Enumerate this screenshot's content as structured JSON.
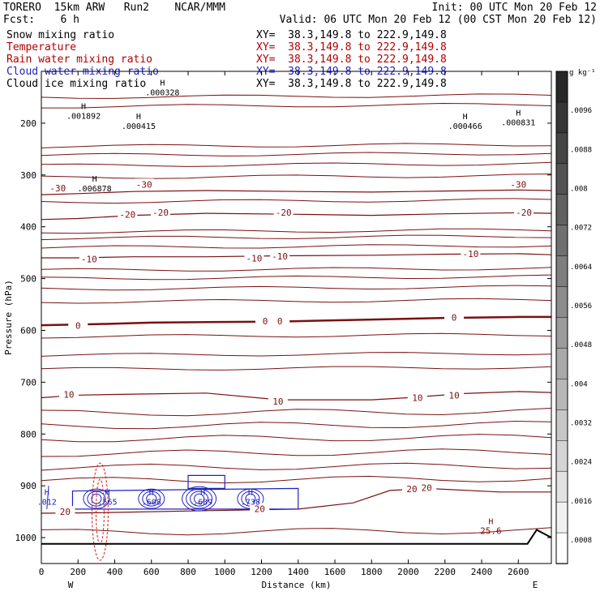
{
  "header": {
    "line1_left": "TORERO  15km ARW   Run2    NCAR/MMM",
    "line1_right": "Init: 00 UTC Mon 20 Feb 12",
    "line2_left": "Fcst:    6 h",
    "line2_right": "Valid: 06 UTC Mon 20 Feb 12 (00 CST Mon 20 Feb 12)"
  },
  "fields": [
    {
      "name": "Snow mixing ratio",
      "xy": "XY=  38.3,149.8 to 222.9,149.8",
      "name_color": "#000000",
      "xy_color": "#000000"
    },
    {
      "name": "Temperature",
      "xy": "XY=  38.3,149.8 to 222.9,149.8",
      "name_color": "#b00000",
      "xy_color": "#b00000"
    },
    {
      "name": "Rain water mixing ratio",
      "xy": "XY=  38.3,149.8 to 222.9,149.8",
      "name_color": "#b00000",
      "xy_color": "#b00000"
    },
    {
      "name": "Cloud water mixing ratio",
      "xy": "XY=  38.3,149.8 to 222.9,149.8",
      "name_color": "#2020c0",
      "xy_color": "#2020c0"
    },
    {
      "name": "Cloud ice mixing ratio",
      "xy": "XY=  38.3,149.8 to 222.9,149.8",
      "name_color": "#000000",
      "xy_color": "#000000"
    }
  ],
  "colors": {
    "temperature": "#7a1010",
    "cloud_water": "#2020c0",
    "rain_water": "#d02020",
    "snow": "#000000",
    "terrain": "#000000"
  },
  "chart_data": {
    "type": "line",
    "xlabel": "Distance (km)",
    "ylabel": "Pressure (hPa)",
    "x_ticks": [
      "0",
      "200",
      "400",
      "600",
      "800",
      "1000",
      "1200",
      "1400",
      "1600",
      "1800",
      "2000",
      "2200",
      "2400",
      "2600"
    ],
    "y_ticks": [
      "200",
      "300",
      "400",
      "500",
      "600",
      "700",
      "800",
      "900",
      "1000"
    ],
    "xlim": [
      0,
      2780
    ],
    "ylim": [
      1050,
      100
    ],
    "y_scale": "linear",
    "x_end_labels": {
      "left": "W",
      "right": "E"
    },
    "colorbar": {
      "unit": "g kg⁻¹",
      "ticks": [
        ".0096",
        ".0088",
        ".008",
        ".0072",
        ".0064",
        ".0056",
        ".0048",
        ".004",
        ".0032",
        ".0024",
        ".0016",
        ".0008"
      ]
    },
    "temperature_contours": [
      {
        "level": -30,
        "points": [
          [
            0,
            338
          ],
          [
            200,
            336
          ],
          [
            500,
            332
          ],
          [
            900,
            330
          ],
          [
            1400,
            332
          ],
          [
            1800,
            333
          ],
          [
            2200,
            331
          ],
          [
            2600,
            329
          ],
          [
            2780,
            330
          ]
        ],
        "labels": [
          {
            "text": "-30",
            "x": 90,
            "p": 325
          },
          {
            "text": "-30",
            "x": 560,
            "p": 318
          },
          {
            "text": "-30",
            "x": 2600,
            "p": 318
          }
        ]
      },
      {
        "level": -20,
        "points": [
          [
            0,
            386
          ],
          [
            200,
            384
          ],
          [
            500,
            378
          ],
          [
            900,
            374
          ],
          [
            1400,
            376
          ],
          [
            1800,
            378
          ],
          [
            2200,
            375
          ],
          [
            2600,
            373
          ],
          [
            2780,
            374
          ]
        ],
        "labels": [
          {
            "text": "-20",
            "x": 470,
            "p": 376
          },
          {
            "text": "-20",
            "x": 650,
            "p": 372
          },
          {
            "text": "-20",
            "x": 1320,
            "p": 372
          },
          {
            "text": "-20",
            "x": 2630,
            "p": 372
          }
        ]
      },
      {
        "level": -10,
        "points": [
          [
            0,
            460
          ],
          [
            200,
            460
          ],
          [
            500,
            458
          ],
          [
            900,
            458
          ],
          [
            1300,
            456
          ],
          [
            1800,
            455
          ],
          [
            2200,
            453
          ],
          [
            2600,
            452
          ],
          [
            2780,
            454
          ]
        ],
        "labels": [
          {
            "text": "-10",
            "x": 260,
            "p": 462
          },
          {
            "text": "-10",
            "x": 1160,
            "p": 461
          },
          {
            "text": "-10",
            "x": 1300,
            "p": 457
          },
          {
            "text": "-10",
            "x": 2340,
            "p": 452
          }
        ]
      },
      {
        "level": 0,
        "points": [
          [
            0,
            590
          ],
          [
            300,
            588
          ],
          [
            600,
            585
          ],
          [
            900,
            584
          ],
          [
            1300,
            583
          ],
          [
            1800,
            579
          ],
          [
            2200,
            576
          ],
          [
            2600,
            574
          ],
          [
            2780,
            574
          ]
        ],
        "labels": [
          {
            "text": "0",
            "x": 200,
            "p": 591
          },
          {
            "text": "0",
            "x": 1220,
            "p": 582
          },
          {
            "text": "0",
            "x": 1300,
            "p": 582
          },
          {
            "text": "0",
            "x": 2250,
            "p": 575
          }
        ]
      },
      {
        "level": 10,
        "points": [
          [
            0,
            730
          ],
          [
            200,
            725
          ],
          [
            500,
            723
          ],
          [
            900,
            721
          ],
          [
            1300,
            734
          ],
          [
            1800,
            734
          ],
          [
            2000,
            730
          ],
          [
            2300,
            722
          ],
          [
            2600,
            718
          ],
          [
            2780,
            720
          ]
        ],
        "labels": [
          {
            "text": "10",
            "x": 150,
            "p": 724
          },
          {
            "text": "10",
            "x": 1290,
            "p": 737
          },
          {
            "text": "10",
            "x": 2050,
            "p": 730
          },
          {
            "text": "10",
            "x": 2250,
            "p": 725
          }
        ]
      },
      {
        "level": 20,
        "points": [
          [
            0,
            953
          ],
          [
            300,
            952
          ],
          [
            900,
            948
          ],
          [
            1400,
            945
          ],
          [
            1700,
            933
          ],
          [
            1900,
            909
          ],
          [
            2100,
            905
          ],
          [
            2500,
            912
          ],
          [
            2780,
            912
          ]
        ],
        "labels": [
          {
            "text": "20",
            "x": 130,
            "p": 950
          },
          {
            "text": "20",
            "x": 1190,
            "p": 944
          },
          {
            "text": "20",
            "x": 2020,
            "p": 906
          },
          {
            "text": "20",
            "x": 2100,
            "p": 904
          }
        ]
      }
    ],
    "cloud_water_highs": [
      {
        "label": "H",
        "value": ".012",
        "x": 30,
        "p": 930
      },
      {
        "label": "H",
        "value": ".565",
        "x": 360,
        "p": 930
      },
      {
        "label": "H",
        "value": ".608",
        "x": 600,
        "p": 930
      },
      {
        "label": "H",
        "value": ".689",
        "x": 880,
        "p": 930
      },
      {
        "label": "H",
        "value": ".738",
        "x": 1140,
        "p": 930
      }
    ],
    "cloud_ice_highs": [
      {
        "label": "H",
        "value": ".000328",
        "x": 660,
        "p": 140
      },
      {
        "label": "H",
        "value": ".001892",
        "x": 230,
        "p": 185
      },
      {
        "label": "H",
        "value": ".000415",
        "x": 530,
        "p": 205
      },
      {
        "label": "H",
        "value": ".000466",
        "x": 2310,
        "p": 205
      },
      {
        "label": "H",
        "value": ".000831",
        "x": 2600,
        "p": 198
      },
      {
        "label": "H",
        "value": ".006878",
        "x": 290,
        "p": 325
      }
    ],
    "surface_temperature_max": {
      "label": "H",
      "value": "25.6",
      "x": 2450,
      "p": 993
    }
  }
}
